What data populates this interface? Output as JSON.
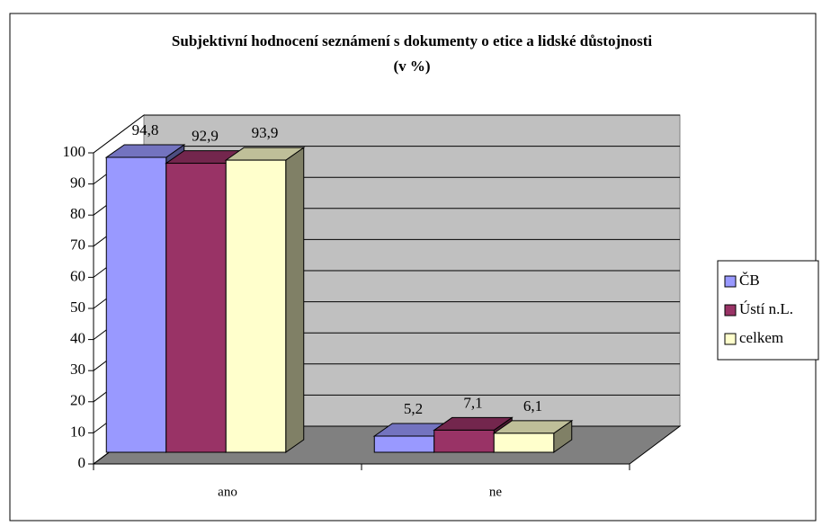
{
  "chart_data": {
    "type": "bar3d",
    "title": "Subjektivní hodnocení seznámení s dokumenty o etice a lidské důstojnosti",
    "subtitle": "(v %)",
    "categories": [
      "ano",
      "ne"
    ],
    "series": [
      {
        "name": "ČB",
        "color": "#9999ff",
        "values": [
          94.8,
          5.2
        ],
        "value_labels": [
          "94,8",
          "5,2"
        ]
      },
      {
        "name": "Ústí n.L.",
        "color": "#993366",
        "values": [
          92.9,
          7.1
        ],
        "value_labels": [
          "92,9",
          "7,1"
        ]
      },
      {
        "name": "celkem",
        "color": "#ffffcc",
        "values": [
          93.9,
          6.1
        ],
        "value_labels": [
          "93,9",
          "6,1"
        ]
      }
    ],
    "ylim": [
      0,
      100
    ],
    "yticks": [
      0,
      10,
      20,
      30,
      40,
      50,
      60,
      70,
      80,
      90,
      100
    ],
    "grid": true,
    "legend": "right"
  }
}
